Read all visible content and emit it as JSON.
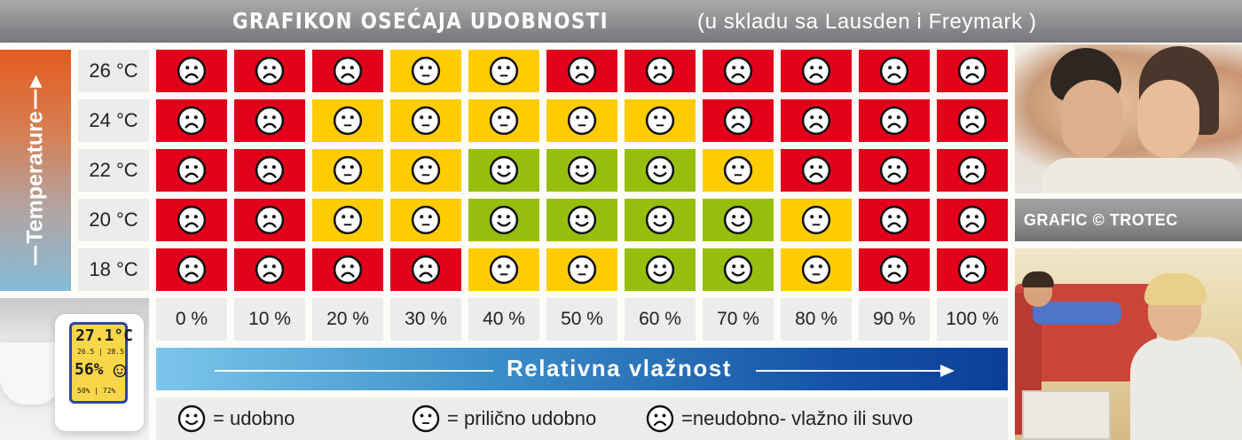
{
  "header": {
    "title": "GRAFIKON OSEĆAJA UDOBNOSTI",
    "subtitle": "(u skladu sa Lausden i Freymark )"
  },
  "y_axis": {
    "label": "Temperature"
  },
  "x_axis": {
    "label": "Relativna vlažnost"
  },
  "credit": "GRAFIC © TROTEC",
  "legend": [
    {
      "icon": "smiley-happy",
      "label": "= udobno"
    },
    {
      "icon": "smiley-neutral",
      "label": "= prilično udobno"
    },
    {
      "icon": "smiley-sad",
      "label": "=neudobno- vlažno ili suvo"
    }
  ],
  "colors": {
    "comfortable": "#96bf0d",
    "fairly_comfortable": "#fecc00",
    "uncomfortable": "#e2001a",
    "label_bg": "#ececec"
  },
  "device_display": {
    "temperature": "27.1°C",
    "temp_min_max": "26.5 | 28.5",
    "humidity": "56%",
    "humidity_min_max": "50% | 72%"
  },
  "chart_data": {
    "type": "heatmap",
    "title": "GRAFIKON OSEĆAJA UDOBNOSTI (u skladu sa Lausden i Freymark )",
    "xlabel": "Relativna vlažnost",
    "ylabel": "Temperature",
    "x": [
      "0 %",
      "10 %",
      "20 %",
      "30 %",
      "40 %",
      "50 %",
      "60 %",
      "70 %",
      "80 %",
      "90 %",
      "100 %"
    ],
    "y": [
      "26 °C",
      "24 °C",
      "22 °C",
      "20 °C",
      "18 °C"
    ],
    "value_legend": {
      "2": "udobno (comfortable)",
      "1": "prilično udobno (fairly comfortable)",
      "0": "neudobno - vlažno ili suvo (uncomfortable)"
    },
    "values": [
      [
        0,
        0,
        0,
        1,
        1,
        0,
        0,
        0,
        0,
        0,
        0
      ],
      [
        0,
        0,
        1,
        1,
        1,
        1,
        1,
        0,
        0,
        0,
        0
      ],
      [
        0,
        0,
        1,
        1,
        2,
        2,
        2,
        1,
        0,
        0,
        0
      ],
      [
        0,
        0,
        1,
        1,
        2,
        2,
        2,
        2,
        1,
        0,
        0
      ],
      [
        0,
        0,
        0,
        0,
        1,
        1,
        2,
        2,
        1,
        0,
        0
      ]
    ]
  }
}
